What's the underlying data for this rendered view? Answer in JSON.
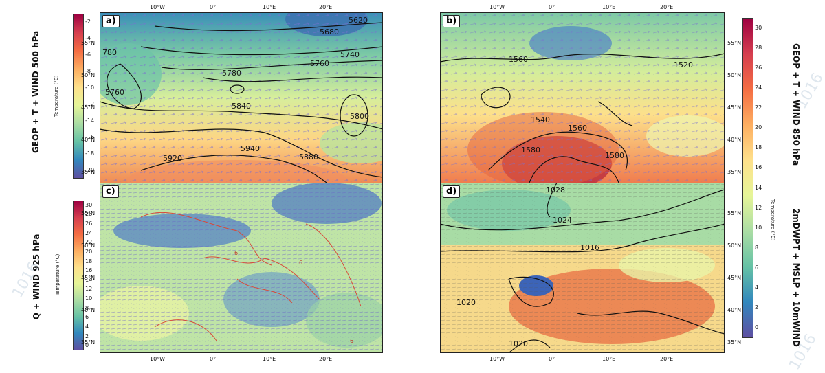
{
  "titles": {
    "row1_left": "GEOP + T + WIND 500 hPa",
    "row2_left": "Q + WIND 925 hPa",
    "row1_right": "GEOP + T + WIND 850 hPa",
    "row2_right": "2mDWPT + MSLP + 10mWIND"
  },
  "panels": {
    "a": {
      "label": "a)",
      "contours": [
        "5620",
        "5680",
        "5740",
        "5760",
        "780",
        "5780",
        "5760",
        "5840",
        "5800",
        "5920",
        "5940",
        "5880"
      ]
    },
    "b": {
      "label": "b)",
      "contours": [
        "1560",
        "1520",
        "1540",
        "1560",
        "1580",
        "1580"
      ]
    },
    "c": {
      "label": "c)",
      "contours": [
        "6",
        "6",
        "6"
      ]
    },
    "d": {
      "label": "d)",
      "contours": [
        "1028",
        "1024",
        "1016",
        "1020",
        "1020"
      ]
    }
  },
  "lon_ticks": [
    "10°W",
    "0°",
    "10°E",
    "20°E"
  ],
  "lat_ticks_top": [
    "55°N",
    "50°N",
    "45°N",
    "40°N",
    "35°N"
  ],
  "lat_ticks_bottom": [
    "55°N",
    "50°N",
    "45°N",
    "40°N",
    "35°N"
  ],
  "colorbars": {
    "a": {
      "label": "Temperature (°C)",
      "ticks": [
        "-2",
        "-4",
        "-6",
        "-8",
        "-10",
        "-12",
        "-14",
        "-16",
        "-18",
        "-20"
      ]
    },
    "c": {
      "label": "Temperature (°C)",
      "ticks": [
        "30",
        "28",
        "26",
        "24",
        "22",
        "20",
        "18",
        "16",
        "14",
        "12",
        "10",
        "8",
        "6",
        "4",
        "2",
        "0"
      ]
    },
    "right": {
      "label": "Temperature (°C)",
      "ticks": [
        "30",
        "28",
        "26",
        "24",
        "22",
        "20",
        "18",
        "16",
        "14",
        "12",
        "10",
        "8",
        "6",
        "4",
        "2",
        "0"
      ]
    }
  },
  "ghost_text": [
    "1016",
    "1016",
    "1016"
  ]
}
